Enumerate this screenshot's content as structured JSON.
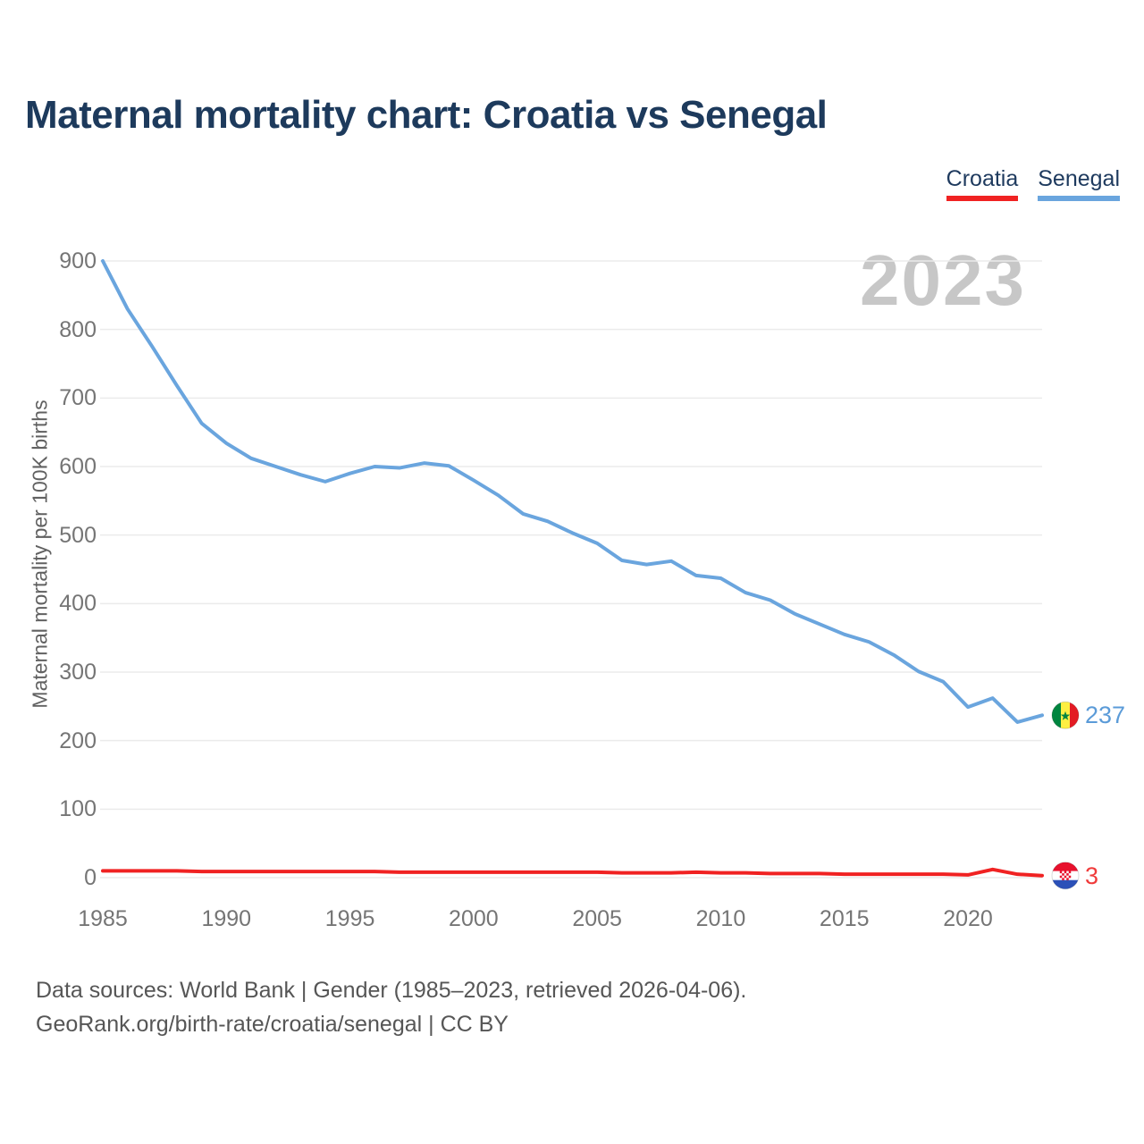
{
  "title": "Maternal mortality chart: Croatia vs Senegal",
  "watermark": "2023",
  "legend": {
    "croatia_label": "Croatia",
    "senegal_label": "Senegal"
  },
  "footer": {
    "line1": "Data sources: World Bank | Gender (1985–2023, retrieved 2026-04-06).",
    "line2": "GeoRank.org/birth-rate/croatia/senegal | CC BY"
  },
  "colors": {
    "title_navy": "#1d3a5c",
    "croatia_red": "#f02222",
    "senegal_blue": "#6aa5de",
    "croatia_value_red": "#f03b3b",
    "senegal_value_blue": "#5b9bd8",
    "gridline": "#ebebeb",
    "tick_gray": "#757575",
    "watermark_gray": "#c7c7c7"
  },
  "chart_data": {
    "type": "line",
    "title": "Maternal mortality chart: Croatia vs Senegal",
    "xlabel": "",
    "ylabel": "Maternal mortality per 100K births",
    "xlim": [
      1985,
      2023
    ],
    "ylim": [
      0,
      900
    ],
    "grid": true,
    "legend_position": "top-right",
    "x_ticks": [
      1985,
      1990,
      1995,
      2000,
      2005,
      2010,
      2015,
      2020
    ],
    "y_ticks": [
      0,
      100,
      200,
      300,
      400,
      500,
      600,
      700,
      800,
      900
    ],
    "x": [
      1985,
      1986,
      1987,
      1988,
      1989,
      1990,
      1991,
      1992,
      1993,
      1994,
      1995,
      1996,
      1997,
      1998,
      1999,
      2000,
      2001,
      2002,
      2003,
      2004,
      2005,
      2006,
      2007,
      2008,
      2009,
      2010,
      2011,
      2012,
      2013,
      2014,
      2015,
      2016,
      2017,
      2018,
      2019,
      2020,
      2021,
      2022,
      2023
    ],
    "series": [
      {
        "name": "Croatia",
        "color": "#f02222",
        "end_label": "3",
        "end_label_color": "#f03b3b",
        "flag": "croatia",
        "values": [
          10,
          10,
          10,
          10,
          9,
          9,
          9,
          9,
          9,
          9,
          9,
          9,
          8,
          8,
          8,
          8,
          8,
          8,
          8,
          8,
          8,
          7,
          7,
          7,
          8,
          7,
          7,
          6,
          6,
          6,
          5,
          5,
          5,
          5,
          5,
          4,
          12,
          5,
          3
        ]
      },
      {
        "name": "Senegal",
        "color": "#6aa5de",
        "end_label": "237",
        "end_label_color": "#5b9bd8",
        "flag": "senegal",
        "values": [
          900,
          830,
          775,
          718,
          663,
          634,
          612,
          600,
          588,
          578,
          590,
          600,
          598,
          605,
          601,
          580,
          558,
          531,
          520,
          503,
          488,
          463,
          457,
          462,
          441,
          437,
          416,
          405,
          385,
          370,
          355,
          344,
          325,
          301,
          286,
          249,
          262,
          227,
          237
        ]
      }
    ]
  }
}
